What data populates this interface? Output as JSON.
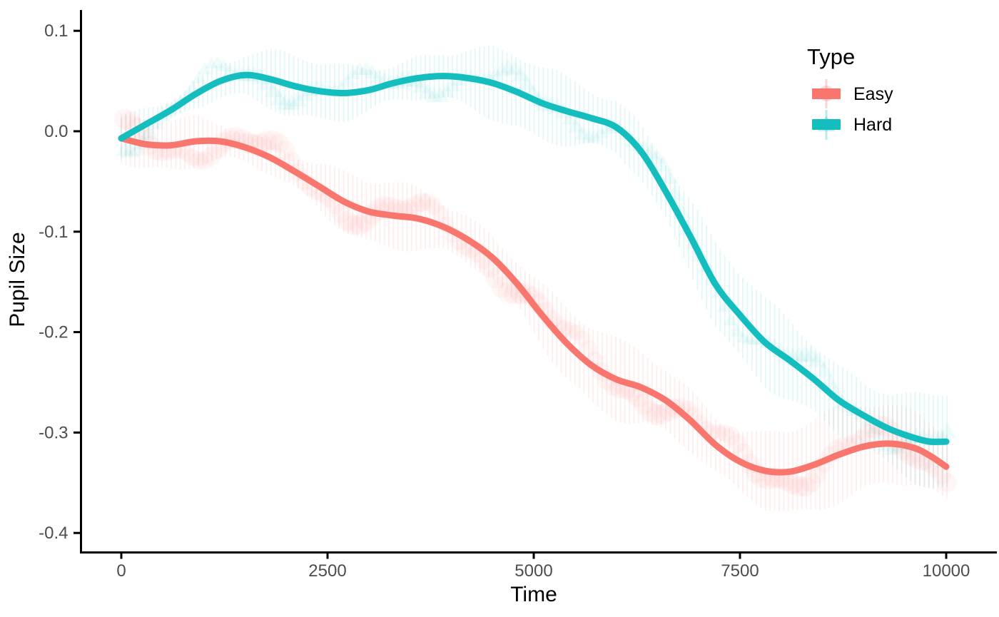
{
  "chart_data": {
    "type": "line",
    "title": "",
    "xlabel": "Time",
    "ylabel": "Pupil Size",
    "xlim": [
      0,
      10000
    ],
    "ylim": [
      -0.42,
      0.115
    ],
    "grid": "off",
    "x_ticks": [
      {
        "value": 0,
        "label": "0"
      },
      {
        "value": 2500,
        "label": "2500"
      },
      {
        "value": 5000,
        "label": "5000"
      },
      {
        "value": 7500,
        "label": "7500"
      },
      {
        "value": 10000,
        "label": "10000"
      }
    ],
    "y_ticks": [
      {
        "value": 0.1,
        "label": "0.1"
      },
      {
        "value": 0.0,
        "label": "0.0"
      },
      {
        "value": -0.1,
        "label": "-0.1"
      },
      {
        "value": -0.2,
        "label": "-0.2"
      },
      {
        "value": -0.3,
        "label": "-0.3"
      },
      {
        "value": -0.4,
        "label": "-0.4"
      }
    ],
    "legend": {
      "title": "Type",
      "position": "right"
    },
    "style": {
      "axis_color": "#000000",
      "tick_label_color": "#4d4d4d",
      "background": "#ffffff",
      "line_width": 9
    },
    "band": {
      "description": "semi-transparent striped error band with soft point cloud around each smoothed line",
      "half_width_start": 0.017,
      "half_width_end": 0.042
    },
    "series": [
      {
        "name": "Easy",
        "color": "#F8766D",
        "marker": "circle",
        "points": [
          [
            0,
            -0.007
          ],
          [
            300,
            -0.013
          ],
          [
            600,
            -0.014
          ],
          [
            900,
            -0.01
          ],
          [
            1200,
            -0.01
          ],
          [
            1500,
            -0.016
          ],
          [
            1800,
            -0.026
          ],
          [
            2100,
            -0.04
          ],
          [
            2400,
            -0.055
          ],
          [
            2700,
            -0.07
          ],
          [
            3000,
            -0.08
          ],
          [
            3300,
            -0.084
          ],
          [
            3600,
            -0.087
          ],
          [
            3900,
            -0.095
          ],
          [
            4200,
            -0.108
          ],
          [
            4500,
            -0.126
          ],
          [
            4800,
            -0.152
          ],
          [
            5100,
            -0.183
          ],
          [
            5400,
            -0.211
          ],
          [
            5700,
            -0.233
          ],
          [
            6000,
            -0.247
          ],
          [
            6300,
            -0.255
          ],
          [
            6600,
            -0.268
          ],
          [
            6900,
            -0.288
          ],
          [
            7200,
            -0.312
          ],
          [
            7500,
            -0.329
          ],
          [
            7800,
            -0.338
          ],
          [
            8100,
            -0.339
          ],
          [
            8400,
            -0.332
          ],
          [
            8700,
            -0.322
          ],
          [
            9000,
            -0.314
          ],
          [
            9300,
            -0.311
          ],
          [
            9600,
            -0.315
          ],
          [
            9800,
            -0.323
          ],
          [
            10000,
            -0.334
          ]
        ]
      },
      {
        "name": "Hard",
        "color": "#14BDBE",
        "marker": "triangle",
        "points": [
          [
            0,
            -0.007
          ],
          [
            300,
            0.007
          ],
          [
            600,
            0.021
          ],
          [
            900,
            0.037
          ],
          [
            1200,
            0.05
          ],
          [
            1500,
            0.056
          ],
          [
            1800,
            0.052
          ],
          [
            2100,
            0.045
          ],
          [
            2400,
            0.04
          ],
          [
            2700,
            0.038
          ],
          [
            3000,
            0.041
          ],
          [
            3300,
            0.048
          ],
          [
            3600,
            0.053
          ],
          [
            3900,
            0.055
          ],
          [
            4200,
            0.053
          ],
          [
            4500,
            0.048
          ],
          [
            4800,
            0.039
          ],
          [
            5100,
            0.028
          ],
          [
            5400,
            0.02
          ],
          [
            5700,
            0.013
          ],
          [
            6000,
            0.004
          ],
          [
            6300,
            -0.02
          ],
          [
            6600,
            -0.06
          ],
          [
            6900,
            -0.105
          ],
          [
            7200,
            -0.152
          ],
          [
            7500,
            -0.183
          ],
          [
            7800,
            -0.21
          ],
          [
            8100,
            -0.228
          ],
          [
            8400,
            -0.247
          ],
          [
            8700,
            -0.268
          ],
          [
            9000,
            -0.283
          ],
          [
            9300,
            -0.296
          ],
          [
            9600,
            -0.305
          ],
          [
            9800,
            -0.309
          ],
          [
            10000,
            -0.309
          ]
        ]
      }
    ]
  }
}
